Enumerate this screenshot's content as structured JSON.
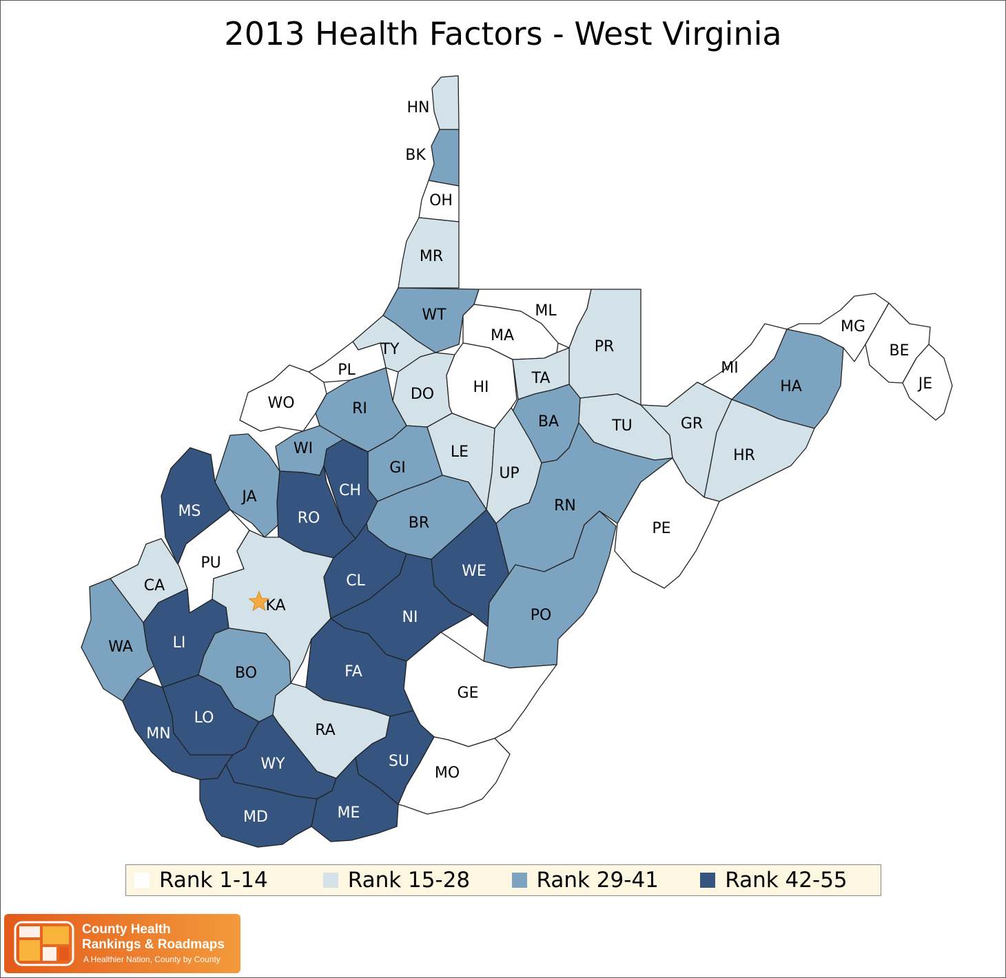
{
  "title": "2013 Health Factors - West Virginia",
  "colors": {
    "rank_1_14": "#ffffff",
    "rank_15_28": "#d3e1e9",
    "rank_29_41": "#7ca3bf",
    "rank_42_55": "#35547f",
    "star": "#f5a941"
  },
  "legend": [
    {
      "label": "Rank 1-14",
      "color": "#ffffff"
    },
    {
      "label": "Rank 15-28",
      "color": "#d3e1e9"
    },
    {
      "label": "Rank 29-41",
      "color": "#7ca3bf"
    },
    {
      "label": "Rank 42-55",
      "color": "#35547f"
    }
  ],
  "counties": [
    {
      "abbr": "HN",
      "rank_group": "Rank 15-28"
    },
    {
      "abbr": "BK",
      "rank_group": "Rank 29-41"
    },
    {
      "abbr": "OH",
      "rank_group": "Rank 1-14"
    },
    {
      "abbr": "MR",
      "rank_group": "Rank 15-28"
    },
    {
      "abbr": "WT",
      "rank_group": "Rank 29-41"
    },
    {
      "abbr": "ML",
      "rank_group": "Rank 1-14"
    },
    {
      "abbr": "MA",
      "rank_group": "Rank 1-14"
    },
    {
      "abbr": "PR",
      "rank_group": "Rank 15-28"
    },
    {
      "abbr": "TY",
      "rank_group": "Rank 15-28"
    },
    {
      "abbr": "PL",
      "rank_group": "Rank 1-14"
    },
    {
      "abbr": "WO",
      "rank_group": "Rank 1-14"
    },
    {
      "abbr": "DO",
      "rank_group": "Rank 15-28"
    },
    {
      "abbr": "HI",
      "rank_group": "Rank 1-14"
    },
    {
      "abbr": "TA",
      "rank_group": "Rank 15-28"
    },
    {
      "abbr": "RI",
      "rank_group": "Rank 29-41"
    },
    {
      "abbr": "BA",
      "rank_group": "Rank 29-41"
    },
    {
      "abbr": "TU",
      "rank_group": "Rank 15-28"
    },
    {
      "abbr": "MI",
      "rank_group": "Rank 1-14"
    },
    {
      "abbr": "MG",
      "rank_group": "Rank 1-14"
    },
    {
      "abbr": "BE",
      "rank_group": "Rank 1-14"
    },
    {
      "abbr": "JE",
      "rank_group": "Rank 1-14"
    },
    {
      "abbr": "HA",
      "rank_group": "Rank 29-41"
    },
    {
      "abbr": "GR",
      "rank_group": "Rank 15-28"
    },
    {
      "abbr": "HR",
      "rank_group": "Rank 15-28"
    },
    {
      "abbr": "WI",
      "rank_group": "Rank 29-41"
    },
    {
      "abbr": "GI",
      "rank_group": "Rank 29-41"
    },
    {
      "abbr": "LE",
      "rank_group": "Rank 15-28"
    },
    {
      "abbr": "UP",
      "rank_group": "Rank 15-28"
    },
    {
      "abbr": "MS",
      "rank_group": "Rank 42-55"
    },
    {
      "abbr": "JA",
      "rank_group": "Rank 29-41"
    },
    {
      "abbr": "RO",
      "rank_group": "Rank 42-55"
    },
    {
      "abbr": "CH",
      "rank_group": "Rank 42-55"
    },
    {
      "abbr": "BR",
      "rank_group": "Rank 29-41"
    },
    {
      "abbr": "RN",
      "rank_group": "Rank 29-41"
    },
    {
      "abbr": "PE",
      "rank_group": "Rank 1-14"
    },
    {
      "abbr": "PU",
      "rank_group": "Rank 1-14"
    },
    {
      "abbr": "CA",
      "rank_group": "Rank 15-28"
    },
    {
      "abbr": "KA",
      "rank_group": "Rank 15-28"
    },
    {
      "abbr": "CL",
      "rank_group": "Rank 42-55"
    },
    {
      "abbr": "WE",
      "rank_group": "Rank 42-55"
    },
    {
      "abbr": "NI",
      "rank_group": "Rank 42-55"
    },
    {
      "abbr": "PO",
      "rank_group": "Rank 29-41"
    },
    {
      "abbr": "WA",
      "rank_group": "Rank 29-41"
    },
    {
      "abbr": "LI",
      "rank_group": "Rank 42-55"
    },
    {
      "abbr": "BO",
      "rank_group": "Rank 29-41"
    },
    {
      "abbr": "FA",
      "rank_group": "Rank 42-55"
    },
    {
      "abbr": "GE",
      "rank_group": "Rank 1-14"
    },
    {
      "abbr": "MN",
      "rank_group": "Rank 42-55"
    },
    {
      "abbr": "LO",
      "rank_group": "Rank 42-55"
    },
    {
      "abbr": "RA",
      "rank_group": "Rank 15-28"
    },
    {
      "abbr": "WY",
      "rank_group": "Rank 42-55"
    },
    {
      "abbr": "SU",
      "rank_group": "Rank 42-55"
    },
    {
      "abbr": "MO",
      "rank_group": "Rank 1-14"
    },
    {
      "abbr": "MD",
      "rank_group": "Rank 42-55"
    },
    {
      "abbr": "ME",
      "rank_group": "Rank 42-55"
    }
  ],
  "capital_marker": {
    "county": "KA",
    "icon": "star-icon"
  },
  "logo": {
    "line1": "County Health",
    "line2": "Rankings & Roadmaps",
    "line3": "A Healthier Nation, County by County"
  }
}
